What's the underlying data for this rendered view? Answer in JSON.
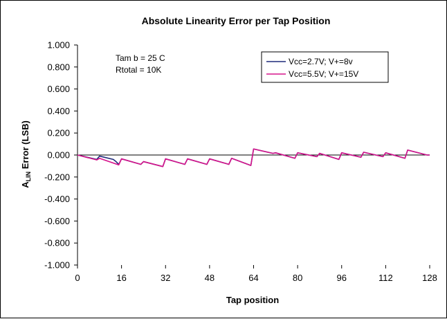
{
  "chart_data": {
    "type": "line",
    "title": "Absolute Linearity Error per Tap Position",
    "xlabel": "Tap position",
    "ylabel_main": "A",
    "ylabel_sub": "LIN",
    "ylabel_rest": " Error (LSB)",
    "xlim": [
      0,
      128
    ],
    "ylim": [
      -1.0,
      1.0
    ],
    "x_ticks": [
      0,
      16,
      32,
      48,
      64,
      80,
      96,
      112,
      128
    ],
    "x_tick_labels": [
      "0",
      "16",
      "32",
      "48",
      "64",
      "80",
      "96",
      "112",
      "128"
    ],
    "y_ticks": [
      1.0,
      0.8,
      0.6,
      0.4,
      0.2,
      0.0,
      -0.2,
      -0.4,
      -0.6,
      -0.8,
      -1.0
    ],
    "y_tick_labels": [
      "1.000",
      "0.800",
      "0.600",
      "0.400",
      "0.200",
      "0.000",
      "-0.200",
      "-0.400",
      "-0.600",
      "-0.800",
      "-1.000"
    ],
    "grid": false,
    "legend_position": "top-right",
    "annotations": [
      "Tam b = 25 C",
      "Rtotal = 10K"
    ],
    "series": [
      {
        "name": "Vcc=2.7V; V+=8v",
        "color": "#1f2a7a",
        "x": [
          0,
          7,
          8,
          13,
          14,
          15,
          16,
          23,
          24,
          31,
          32,
          39,
          40,
          47,
          48,
          55,
          56,
          63,
          64,
          71,
          72,
          79,
          80,
          87,
          88,
          95,
          96,
          103,
          104,
          111,
          112,
          119,
          120,
          127,
          128
        ],
        "y": [
          0.0,
          -0.04,
          -0.01,
          -0.04,
          -0.06,
          -0.085,
          -0.035,
          -0.085,
          -0.06,
          -0.105,
          -0.035,
          -0.085,
          -0.035,
          -0.085,
          -0.035,
          -0.085,
          -0.03,
          -0.095,
          0.055,
          0.015,
          0.02,
          -0.03,
          0.02,
          -0.015,
          0.015,
          -0.04,
          0.02,
          -0.02,
          0.025,
          -0.015,
          0.02,
          -0.03,
          0.045,
          0.0,
          0.0
        ]
      },
      {
        "name": "Vcc=5.5V; V+=15V",
        "color": "#d6148c",
        "x": [
          0,
          7,
          8,
          15,
          16,
          23,
          24,
          31,
          32,
          39,
          40,
          47,
          48,
          55,
          56,
          63,
          64,
          71,
          72,
          79,
          80,
          87,
          88,
          95,
          96,
          103,
          104,
          111,
          112,
          119,
          120,
          127,
          128
        ],
        "y": [
          0.0,
          -0.045,
          -0.03,
          -0.09,
          -0.035,
          -0.085,
          -0.06,
          -0.105,
          -0.035,
          -0.085,
          -0.035,
          -0.085,
          -0.035,
          -0.085,
          -0.03,
          -0.095,
          0.055,
          0.015,
          0.02,
          -0.03,
          0.02,
          -0.015,
          0.015,
          -0.04,
          0.02,
          -0.02,
          0.025,
          -0.015,
          0.02,
          -0.03,
          0.045,
          0.0,
          0.0
        ]
      }
    ]
  }
}
